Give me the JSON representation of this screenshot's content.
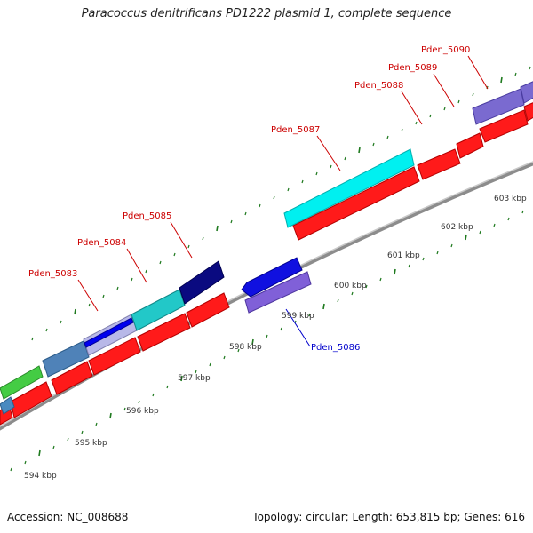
{
  "title": "Paracoccus denitrificans PD1222 plasmid 1, complete sequence",
  "footer": {
    "accession": "Accession: NC_008688",
    "summary": "Topology: circular; Length: 653,815 bp; Genes: 616"
  },
  "colors": {
    "background": "#ffffff",
    "backbone": "#8c8c8c",
    "cds": "#ff1a1a",
    "tick": "#1f7a1f",
    "label_red": "#cc0000",
    "label_blue": "#0000cc"
  },
  "ruler": {
    "unit": "kbp",
    "labels": [
      "594 kbp",
      "595 kbp",
      "596 kbp",
      "597 kbp",
      "598 kbp",
      "599 kbp",
      "600 kbp",
      "601 kbp",
      "602 kbp",
      "603 kbp"
    ]
  },
  "genes": [
    {
      "name": "Pden_5083",
      "color": "label_red"
    },
    {
      "name": "Pden_5084",
      "color": "label_red"
    },
    {
      "name": "Pden_5085",
      "color": "label_red"
    },
    {
      "name": "Pden_5086",
      "color": "label_blue"
    },
    {
      "name": "Pden_5087",
      "color": "label_red"
    },
    {
      "name": "Pden_5088",
      "color": "label_red"
    },
    {
      "name": "Pden_5089",
      "color": "label_red"
    },
    {
      "name": "Pden_5090",
      "color": "label_red"
    }
  ]
}
